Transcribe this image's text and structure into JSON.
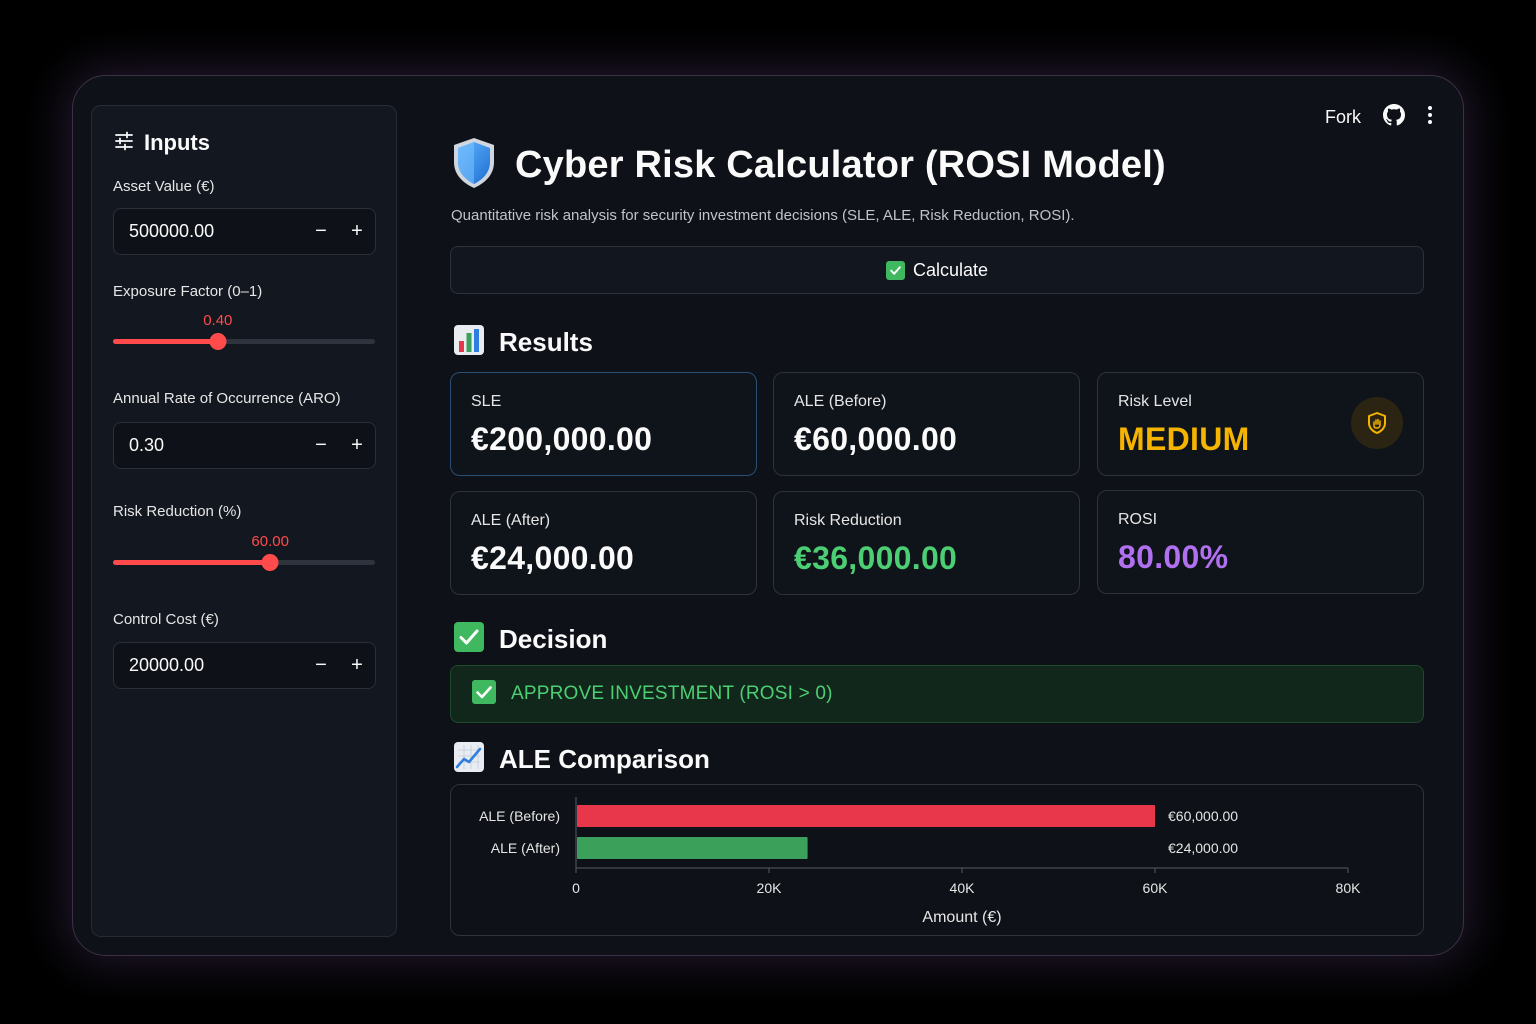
{
  "sidebar": {
    "title": "Inputs",
    "asset_value": {
      "label": "Asset Value (€)",
      "value": "500000.00"
    },
    "exposure_factor": {
      "label": "Exposure Factor (0–1)",
      "value": "0.40",
      "fraction": 0.4
    },
    "aro": {
      "label": "Annual Rate of Occurrence (ARO)",
      "value": "0.30"
    },
    "risk_reduction": {
      "label": "Risk Reduction (%)",
      "value": "60.00",
      "fraction": 0.6
    },
    "control_cost": {
      "label": "Control Cost (€)",
      "value": "20000.00"
    },
    "minus": "−",
    "plus": "+"
  },
  "topbar": {
    "fork": "Fork"
  },
  "header": {
    "title": "Cyber Risk Calculator (ROSI Model)",
    "subtitle": "Quantitative risk analysis for security investment decisions (SLE, ALE, Risk Reduction, ROSI)."
  },
  "calculate": {
    "label": "Calculate"
  },
  "results": {
    "heading": "Results",
    "sle": {
      "label": "SLE",
      "value": "€200,000.00"
    },
    "ale_before": {
      "label": "ALE (Before)",
      "value": "€60,000.00"
    },
    "risk_level": {
      "label": "Risk Level",
      "value": "MEDIUM"
    },
    "ale_after": {
      "label": "ALE (After)",
      "value": "€24,000.00"
    },
    "risk_reduction": {
      "label": "Risk Reduction",
      "value": "€36,000.00"
    },
    "rosi": {
      "label": "ROSI",
      "value": "80.00%"
    }
  },
  "decision": {
    "heading": "Decision",
    "text": "APPROVE INVESTMENT (ROSI > 0)"
  },
  "comparison": {
    "heading": "ALE Comparison"
  },
  "colors": {
    "accent": "#ff4b4b",
    "medium": "#f5b400",
    "green": "#4ccf73",
    "purple": "#b070f0",
    "bar_before": "#e8364a",
    "bar_after": "#3aa05a"
  },
  "chart_data": {
    "type": "bar",
    "orientation": "horizontal",
    "categories": [
      "ALE (Before)",
      "ALE (After)"
    ],
    "values": [
      60000,
      24000
    ],
    "data_labels": [
      "€60,000.00",
      "€24,000.00"
    ],
    "xlabel": "Amount (€)",
    "xlim": [
      0,
      80000
    ],
    "xticks": [
      0,
      20000,
      40000,
      60000,
      80000
    ],
    "xtick_labels": [
      "0",
      "20K",
      "40K",
      "60K",
      "80K"
    ]
  }
}
